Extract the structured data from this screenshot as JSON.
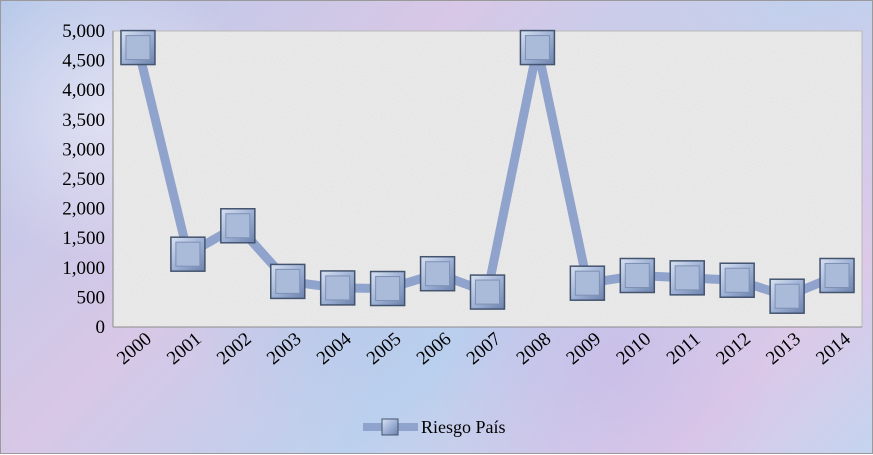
{
  "chart_data": {
    "type": "line",
    "categories": [
      "2000",
      "2001",
      "2002",
      "2003",
      "2004",
      "2005",
      "2006",
      "2007",
      "2008",
      "2009",
      "2010",
      "2011",
      "2012",
      "2013",
      "2014"
    ],
    "series": [
      {
        "name": "Riesgo País",
        "values": [
          4720,
          1230,
          1710,
          770,
          660,
          650,
          900,
          590,
          4720,
          740,
          870,
          830,
          790,
          520,
          870
        ]
      }
    ],
    "ylim": [
      0,
      5000
    ],
    "yticks": [
      "0",
      "500",
      "1,000",
      "1,500",
      "2,000",
      "2,500",
      "3,000",
      "3,500",
      "4,000",
      "4,500",
      "5,000"
    ],
    "legend_position": "bottom",
    "grid": false,
    "colors": {
      "line": "#8fa3cc",
      "marker_fill": "#aabbd9",
      "marker_border": "#44546f",
      "plot_bg": "#efefef"
    }
  }
}
